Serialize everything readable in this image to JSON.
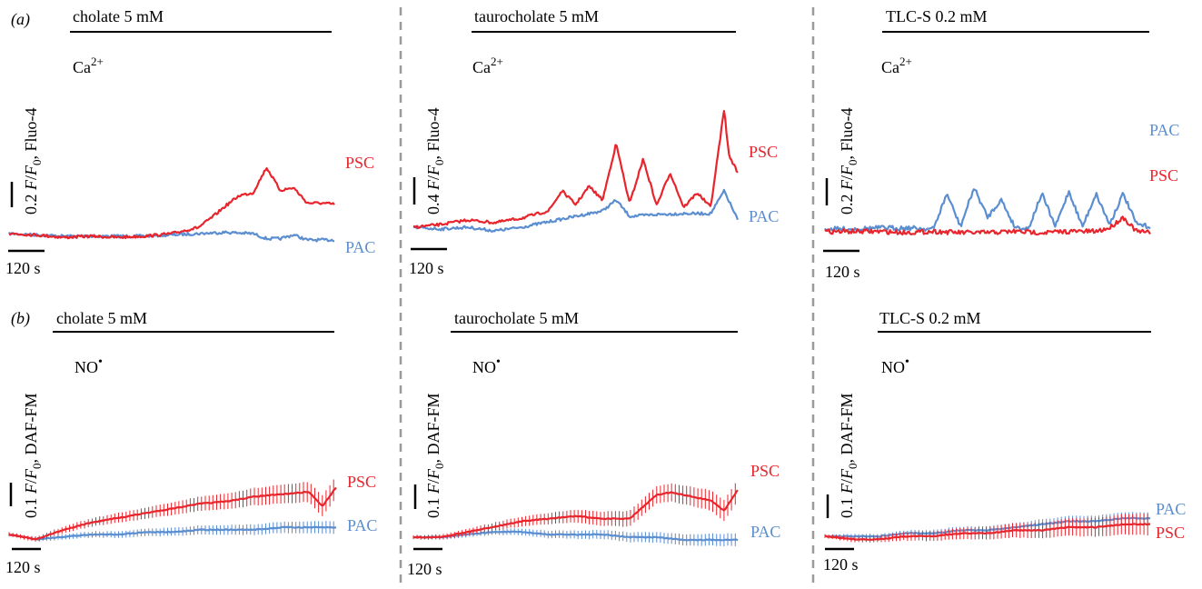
{
  "colors": {
    "PSC": "#e8252c",
    "PAC": "#5b8ed0",
    "axis": "#000000",
    "divider": "#9a9a9a"
  },
  "rows": [
    {
      "label": "(a)",
      "ion": "Ca2+",
      "panels": [
        {
          "condition": "cholate 5 mM",
          "scale_label": "0.2 F/F0, Fluo-4",
          "time_scale": "120 s"
        },
        {
          "condition": "taurocholate 5 mM",
          "scale_label": "0.4 F/F0, Fluo-4",
          "time_scale": "120 s"
        },
        {
          "condition": "TLC-S 0.2 mM",
          "scale_label": "0.2 F/F0, Fluo-4",
          "time_scale": "120 s"
        }
      ]
    },
    {
      "label": "(b)",
      "ion": "NO•",
      "panels": [
        {
          "condition": "cholate 5 mM",
          "scale_label": "0.1 F/F0, DAF-FM",
          "time_scale": "120 s"
        },
        {
          "condition": "taurocholate 5 mM",
          "scale_label": "0.1 F/F0, DAF-FM",
          "time_scale": "120 s"
        },
        {
          "condition": "TLC-S 0.2 mM",
          "scale_label": "0.1 F/F0, DAF-FM",
          "time_scale": "120 s"
        }
      ]
    }
  ],
  "chart_data": [
    {
      "type": "line",
      "row": "a",
      "panel": "cholate 5 mM",
      "indicator": "Fluo-4",
      "ion": "Ca2+",
      "x_unit": "s",
      "y_unit": "F/F0",
      "series": [
        {
          "name": "PSC",
          "x": [
            0,
            60,
            120,
            180,
            240,
            300,
            360,
            420,
            450,
            480,
            510,
            540,
            570,
            600,
            630,
            660,
            690,
            720
          ],
          "y": [
            1.0,
            0.99,
            0.97,
            0.98,
            0.97,
            0.98,
            1.0,
            1.05,
            1.13,
            1.22,
            1.3,
            1.32,
            1.52,
            1.34,
            1.36,
            1.24,
            1.24,
            1.23
          ]
        },
        {
          "name": "PAC",
          "x": [
            0,
            60,
            120,
            180,
            240,
            300,
            360,
            420,
            480,
            540,
            570,
            600,
            630,
            660,
            690,
            720
          ],
          "y": [
            1.0,
            0.99,
            0.98,
            0.98,
            0.98,
            0.98,
            0.99,
            1.0,
            1.01,
            1.0,
            0.96,
            0.96,
            0.99,
            0.95,
            0.95,
            0.95
          ]
        }
      ]
    },
    {
      "type": "line",
      "row": "a",
      "panel": "taurocholate 5 mM",
      "indicator": "Fluo-4",
      "ion": "Ca2+",
      "x_unit": "s",
      "y_unit": "F/F0",
      "series": [
        {
          "name": "PSC",
          "x": [
            0,
            60,
            120,
            180,
            240,
            300,
            330,
            360,
            390,
            420,
            450,
            480,
            510,
            540,
            570,
            600,
            630,
            660,
            690,
            700,
            720
          ],
          "y": [
            1.0,
            1.03,
            1.08,
            1.05,
            1.1,
            1.18,
            1.4,
            1.25,
            1.45,
            1.3,
            1.92,
            1.26,
            1.75,
            1.24,
            1.6,
            1.22,
            1.38,
            1.22,
            2.3,
            1.8,
            1.6
          ]
        },
        {
          "name": "PAC",
          "x": [
            0,
            60,
            120,
            180,
            240,
            300,
            360,
            420,
            450,
            480,
            540,
            600,
            660,
            690,
            720
          ],
          "y": [
            1.0,
            0.98,
            1.0,
            0.96,
            1.0,
            1.06,
            1.12,
            1.18,
            1.3,
            1.12,
            1.14,
            1.15,
            1.15,
            1.4,
            1.08
          ]
        }
      ]
    },
    {
      "type": "line",
      "row": "a",
      "panel": "TLC-S 0.2 mM",
      "indicator": "Fluo-4",
      "ion": "Ca2+",
      "x_unit": "s",
      "y_unit": "F/F0",
      "series": [
        {
          "name": "PAC",
          "x": [
            0,
            60,
            120,
            180,
            240,
            270,
            300,
            330,
            360,
            390,
            420,
            450,
            480,
            510,
            540,
            570,
            600,
            630,
            660,
            690,
            720
          ],
          "y": [
            1.0,
            1.0,
            1.01,
            1.01,
            1.0,
            1.3,
            1.02,
            1.35,
            1.1,
            1.25,
            1.02,
            1.0,
            1.3,
            1.02,
            1.32,
            1.02,
            1.3,
            1.04,
            1.3,
            1.04,
            1.02
          ]
        },
        {
          "name": "PSC",
          "x": [
            0,
            60,
            120,
            180,
            240,
            300,
            360,
            420,
            480,
            540,
            600,
            630,
            660,
            690,
            720
          ],
          "y": [
            0.98,
            0.98,
            0.98,
            0.97,
            0.98,
            0.97,
            0.97,
            0.98,
            0.97,
            0.98,
            0.98,
            1.01,
            1.1,
            0.98,
            0.97
          ]
        }
      ]
    },
    {
      "type": "line",
      "row": "b",
      "panel": "cholate 5 mM",
      "indicator": "DAF-FM",
      "ion": "NO•",
      "x_unit": "s",
      "y_unit": "F/F0",
      "series": [
        {
          "name": "PSC",
          "x": [
            0,
            60,
            120,
            180,
            240,
            300,
            360,
            420,
            480,
            540,
            600,
            660,
            690,
            720
          ],
          "y": [
            1.0,
            0.98,
            1.02,
            1.05,
            1.07,
            1.09,
            1.11,
            1.13,
            1.14,
            1.16,
            1.17,
            1.18,
            1.12,
            1.2
          ]
        },
        {
          "name": "PAC",
          "x": [
            0,
            60,
            120,
            180,
            240,
            300,
            360,
            420,
            480,
            540,
            600,
            660,
            720
          ],
          "y": [
            1.0,
            0.98,
            0.99,
            1.0,
            1.0,
            1.01,
            1.01,
            1.02,
            1.02,
            1.02,
            1.03,
            1.03,
            1.03
          ]
        }
      ]
    },
    {
      "type": "line",
      "row": "b",
      "panel": "taurocholate 5 mM",
      "indicator": "DAF-FM",
      "ion": "NO•",
      "x_unit": "s",
      "y_unit": "F/F0",
      "series": [
        {
          "name": "PSC",
          "x": [
            0,
            60,
            120,
            180,
            240,
            300,
            360,
            420,
            480,
            540,
            570,
            600,
            660,
            690,
            720
          ],
          "y": [
            1.0,
            1.0,
            1.02,
            1.04,
            1.06,
            1.07,
            1.08,
            1.07,
            1.07,
            1.16,
            1.17,
            1.16,
            1.14,
            1.1,
            1.18
          ]
        },
        {
          "name": "PAC",
          "x": [
            0,
            60,
            120,
            180,
            240,
            300,
            360,
            420,
            480,
            540,
            600,
            660,
            720
          ],
          "y": [
            1.0,
            1.0,
            1.01,
            1.02,
            1.02,
            1.01,
            1.01,
            1.01,
            1.0,
            1.0,
            0.99,
            0.99,
            0.99
          ]
        }
      ]
    },
    {
      "type": "line",
      "row": "b",
      "panel": "TLC-S 0.2 mM",
      "indicator": "DAF-FM",
      "ion": "NO•",
      "x_unit": "s",
      "y_unit": "F/F0",
      "series": [
        {
          "name": "PAC",
          "x": [
            0,
            60,
            120,
            180,
            240,
            300,
            360,
            420,
            480,
            540,
            600,
            660,
            720
          ],
          "y": [
            1.0,
            1.0,
            1.0,
            1.01,
            1.01,
            1.02,
            1.02,
            1.03,
            1.04,
            1.05,
            1.05,
            1.06,
            1.06
          ]
        },
        {
          "name": "PSC",
          "x": [
            0,
            60,
            120,
            180,
            240,
            300,
            360,
            420,
            480,
            540,
            600,
            660,
            720
          ],
          "y": [
            1.0,
            0.99,
            0.99,
            1.0,
            1.0,
            1.01,
            1.01,
            1.02,
            1.02,
            1.03,
            1.03,
            1.04,
            1.04
          ]
        }
      ]
    }
  ]
}
